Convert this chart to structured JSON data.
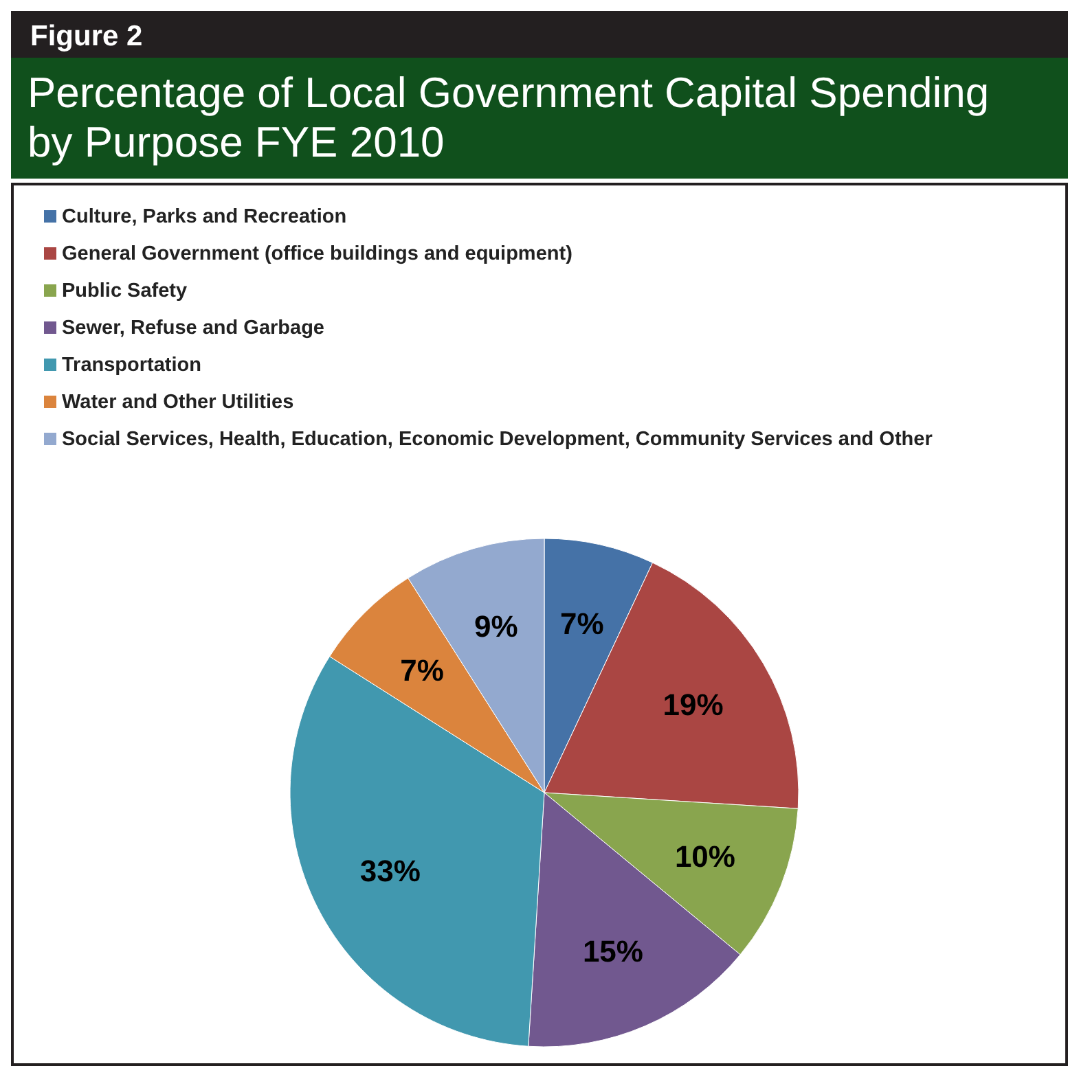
{
  "chart_data": {
    "type": "pie",
    "title": "Percentage of Local Government Capital Spending by Purpose FYE 2010",
    "annotations": [
      "Figure 2"
    ],
    "categories": [
      "Culture, Parks and Recreation",
      "General Government (office buildings and equipment)",
      "Public Safety",
      "Sewer, Refuse and Garbage",
      "Transportation",
      "Water and Other Utilities",
      "Social Services, Health, Education, Economic Development, Community Services and Other"
    ],
    "values": [
      7,
      19,
      10,
      15,
      33,
      7,
      9
    ],
    "value_labels": [
      "7%",
      "19%",
      "10%",
      "15%",
      "33%",
      "7%",
      "9%"
    ],
    "colors": [
      "#4572a7",
      "#aa4643",
      "#89a54e",
      "#71588f",
      "#4198af",
      "#db843d",
      "#93a9cf"
    ],
    "legend": "top left"
  }
}
